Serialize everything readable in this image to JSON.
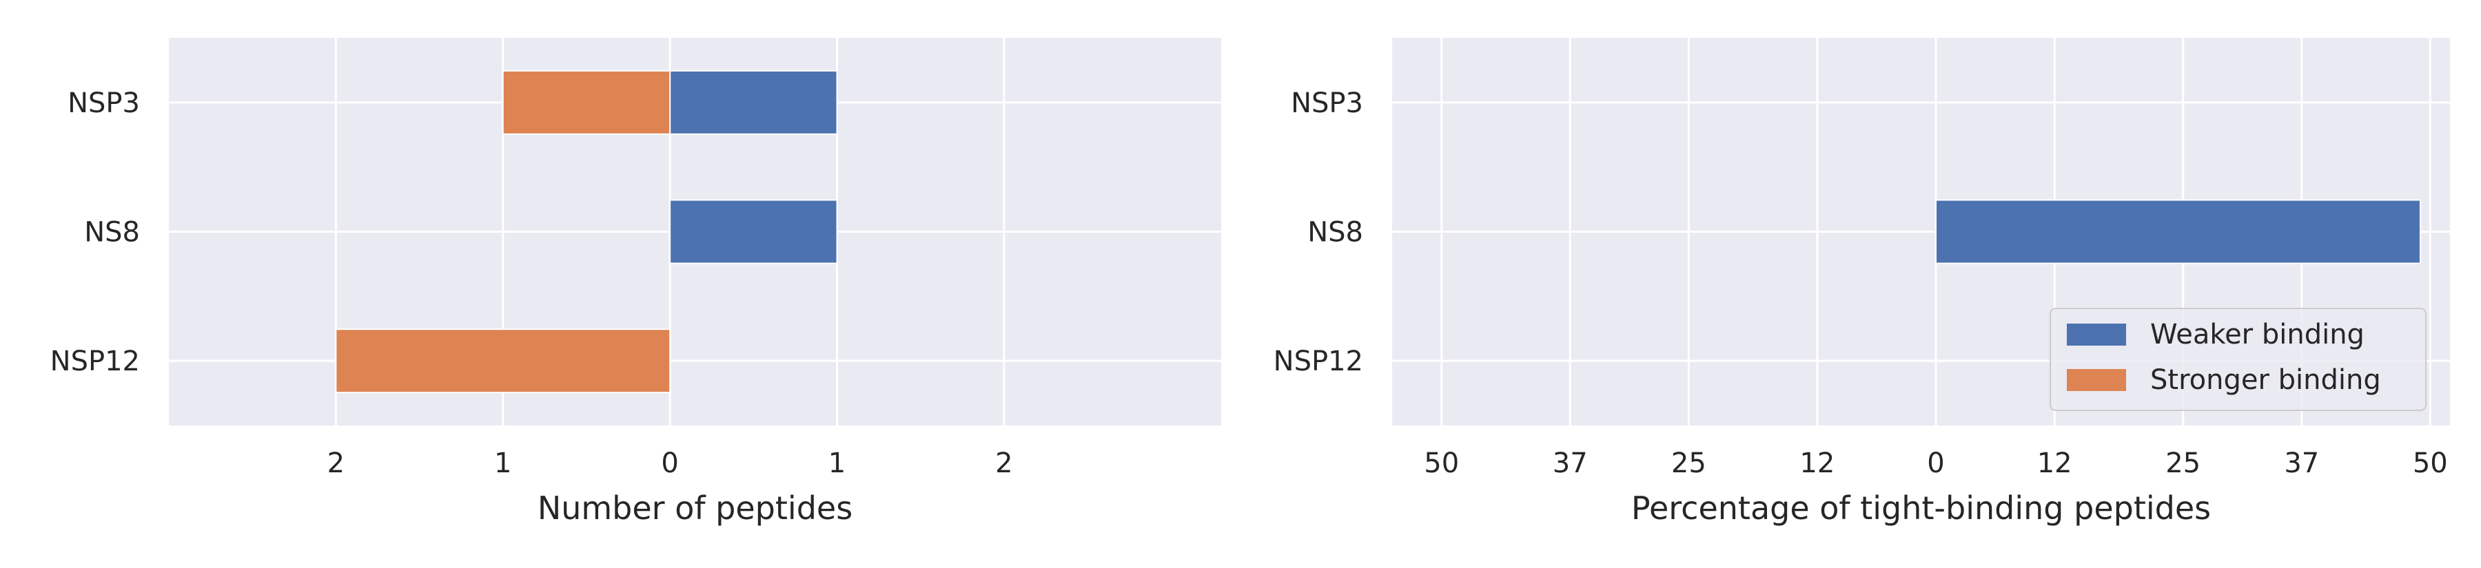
{
  "colors": {
    "background": "#EAEAF2",
    "grid": "#FFFFFF",
    "weaker": "#4C72B0",
    "stronger": "#DD8452",
    "text": "#262626"
  },
  "chart_data": [
    {
      "type": "bar",
      "orientation": "horizontal",
      "stacked_diverging": true,
      "categories": [
        "NSP3",
        "NS8",
        "NSP12"
      ],
      "series": [
        {
          "name": "Weaker binding",
          "side": "positive",
          "values": [
            1,
            1,
            0
          ]
        },
        {
          "name": "Stronger binding",
          "side": "negative",
          "values": [
            1,
            0,
            2
          ]
        }
      ],
      "xlabel": "Number of peptides",
      "xlim": [
        -3.0,
        3.3
      ],
      "xticks": [
        -2,
        -1,
        0,
        1,
        2
      ],
      "xtick_labels": [
        "2",
        "1",
        "0",
        "1",
        "2"
      ],
      "grid": true,
      "legend": "none"
    },
    {
      "type": "bar",
      "orientation": "horizontal",
      "stacked_diverging": true,
      "categories": [
        "NSP3",
        "NS8",
        "NSP12"
      ],
      "series": [
        {
          "name": "Weaker binding",
          "side": "positive",
          "values": [
            0,
            49,
            0
          ]
        },
        {
          "name": "Stronger binding",
          "side": "negative",
          "values": [
            0,
            0,
            0
          ]
        }
      ],
      "xlabel": "Percentage of tight-binding peptides",
      "xlim": [
        -55,
        52
      ],
      "xticks": [
        -50,
        -37,
        -25,
        -12,
        0,
        12,
        25,
        37,
        50
      ],
      "xtick_labels": [
        "50",
        "37",
        "25",
        "12",
        "0",
        "12",
        "25",
        "37",
        "50"
      ],
      "grid": true,
      "legend": "lower right"
    }
  ]
}
